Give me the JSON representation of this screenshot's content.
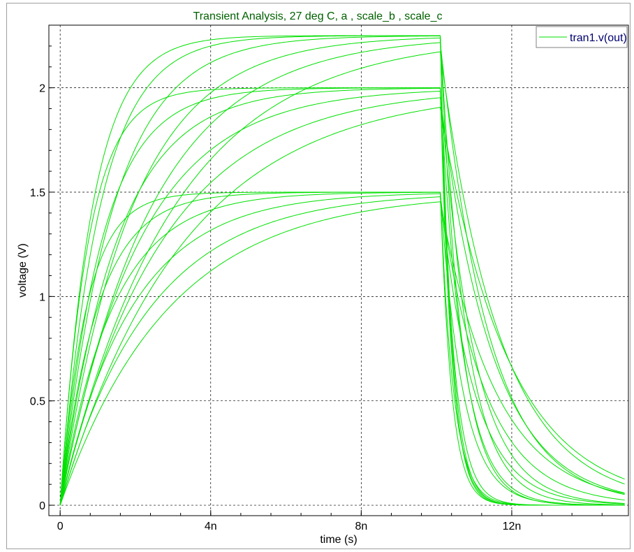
{
  "chart_data": {
    "type": "line",
    "title": "Transient Analysis, 27 deg C, a , scale_b , scale_c",
    "xlabel": "time (s)",
    "ylabel": "voltage (V)",
    "xlim": [
      -0.3,
      15.1
    ],
    "ylim": [
      -0.05,
      2.3
    ],
    "xticks": [
      {
        "v": 0,
        "label": "0"
      },
      {
        "v": 4,
        "label": "4n"
      },
      {
        "v": 8,
        "label": "8n"
      },
      {
        "v": 12,
        "label": "12n"
      }
    ],
    "yticks": [
      {
        "v": 0,
        "label": "0"
      },
      {
        "v": 0.5,
        "label": "0.5"
      },
      {
        "v": 1,
        "label": "1"
      },
      {
        "v": 1.5,
        "label": "1.5"
      },
      {
        "v": 2,
        "label": "2"
      }
    ],
    "x_unit": "ns",
    "grid": true,
    "legend": {
      "position": "top-right",
      "label": "tran1.v(out)"
    },
    "color": "#00e000",
    "pulse_end": 10.1,
    "sim_end": 15,
    "series": [
      {
        "v_final": 2.25,
        "t_rise": 0.85,
        "t_fall": 0.28
      },
      {
        "v_final": 2.25,
        "t_rise": 1.05,
        "t_fall": 0.3
      },
      {
        "v_final": 2.25,
        "t_rise": 1.4,
        "t_fall": 0.55
      },
      {
        "v_final": 2.25,
        "t_rise": 1.9,
        "t_fall": 0.7
      },
      {
        "v_final": 2.25,
        "t_rise": 2.4,
        "t_fall": 1.3
      },
      {
        "v_final": 2.25,
        "t_rise": 3.0,
        "t_fall": 1.6
      },
      {
        "v_final": 2.0,
        "t_rise": 0.75,
        "t_fall": 0.3
      },
      {
        "v_final": 2.0,
        "t_rise": 1.1,
        "t_fall": 0.35
      },
      {
        "v_final": 2.0,
        "t_rise": 1.5,
        "t_fall": 0.6
      },
      {
        "v_final": 2.0,
        "t_rise": 2.1,
        "t_fall": 0.9
      },
      {
        "v_final": 2.0,
        "t_rise": 2.7,
        "t_fall": 1.4
      },
      {
        "v_final": 2.0,
        "t_rise": 3.3,
        "t_fall": 1.8
      },
      {
        "v_final": 1.5,
        "t_rise": 0.7,
        "t_fall": 0.3
      },
      {
        "v_final": 1.5,
        "t_rise": 1.0,
        "t_fall": 0.35
      },
      {
        "v_final": 1.5,
        "t_rise": 1.4,
        "t_fall": 0.6
      },
      {
        "v_final": 1.5,
        "t_rise": 1.9,
        "t_fall": 0.9
      },
      {
        "v_final": 1.5,
        "t_rise": 2.4,
        "t_fall": 1.2
      },
      {
        "v_final": 1.5,
        "t_rise": 2.9,
        "t_fall": 1.5
      }
    ]
  }
}
